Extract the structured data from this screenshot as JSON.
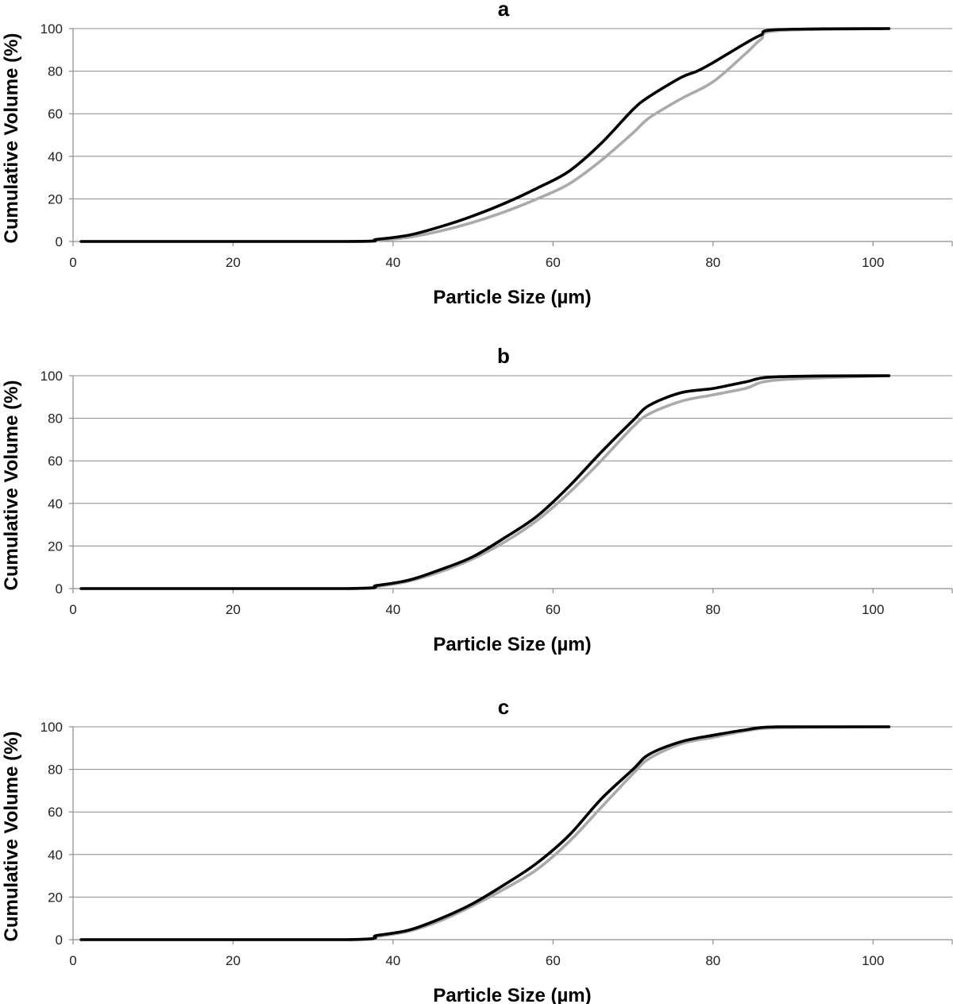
{
  "chart_data": [
    {
      "type": "line",
      "title": "a",
      "xlabel": "Particle Size (µm)",
      "ylabel": "Cumulative Volume (%)",
      "xlim": [
        0,
        110
      ],
      "ylim": [
        0,
        100
      ],
      "xticks": [
        0,
        20,
        40,
        60,
        80,
        100
      ],
      "yticks": [
        0,
        20,
        40,
        60,
        80,
        100
      ],
      "grid": "horizontal",
      "legend": "none",
      "series": [
        {
          "color": "#aaaaaa",
          "x": [
            1,
            34,
            38,
            42,
            46,
            50,
            54,
            58,
            62,
            66,
            70,
            72,
            76,
            80,
            84,
            86,
            88,
            102
          ],
          "y": [
            0,
            0,
            0.5,
            2,
            5,
            9,
            14,
            20,
            27,
            38,
            51,
            58,
            67,
            75,
            88,
            95,
            99,
            100
          ]
        },
        {
          "color": "#000000",
          "x": [
            1,
            34,
            38,
            42,
            46,
            50,
            54,
            58,
            62,
            66,
            70,
            72,
            76,
            78,
            80,
            84,
            86,
            88,
            102
          ],
          "y": [
            0,
            0,
            1,
            3,
            7,
            12,
            18,
            25,
            33,
            46,
            62,
            68,
            77,
            80,
            84,
            93,
            97,
            99.5,
            100
          ]
        }
      ]
    },
    {
      "type": "line",
      "title": "b",
      "xlabel": "Particle Size (µm)",
      "ylabel": "Cumulative Volume (%)",
      "xlim": [
        0,
        110
      ],
      "ylim": [
        0,
        100
      ],
      "xticks": [
        0,
        20,
        40,
        60,
        80,
        100
      ],
      "yticks": [
        0,
        20,
        40,
        60,
        80,
        100
      ],
      "grid": "horizontal",
      "legend": "none",
      "series": [
        {
          "color": "#aaaaaa",
          "x": [
            1,
            34,
            38,
            42,
            46,
            50,
            54,
            58,
            62,
            66,
            70,
            72,
            76,
            80,
            84,
            88,
            102
          ],
          "y": [
            0,
            0,
            1,
            3.5,
            8,
            14,
            22,
            32,
            45,
            60,
            76,
            82,
            88,
            91,
            94,
            98,
            100
          ]
        },
        {
          "color": "#000000",
          "x": [
            1,
            34,
            38,
            42,
            46,
            50,
            54,
            58,
            62,
            66,
            70,
            72,
            76,
            80,
            84,
            88,
            102
          ],
          "y": [
            0,
            0,
            1.5,
            4,
            9,
            15,
            24,
            34,
            48,
            64,
            79,
            86,
            92,
            94,
            97,
            99.5,
            100
          ]
        }
      ]
    },
    {
      "type": "line",
      "title": "c",
      "xlabel": "Particle Size (µm)",
      "ylabel": "Cumulative Volume (%)",
      "xlim": [
        0,
        110
      ],
      "ylim": [
        0,
        100
      ],
      "xticks": [
        0,
        20,
        40,
        60,
        80,
        100
      ],
      "yticks": [
        0,
        20,
        40,
        60,
        80,
        100
      ],
      "grid": "horizontal",
      "legend": "none",
      "series": [
        {
          "color": "#aaaaaa",
          "x": [
            1,
            34,
            38,
            42,
            46,
            50,
            54,
            58,
            62,
            66,
            70,
            72,
            76,
            80,
            84,
            88,
            102
          ],
          "y": [
            0,
            0,
            1.5,
            4,
            9,
            16,
            24,
            33,
            46,
            62,
            78,
            85,
            92,
            95,
            98,
            99.5,
            100
          ]
        },
        {
          "color": "#000000",
          "x": [
            1,
            34,
            38,
            42,
            46,
            50,
            54,
            58,
            62,
            66,
            70,
            72,
            76,
            80,
            84,
            88,
            102
          ],
          "y": [
            0,
            0,
            2,
            4.5,
            10,
            17,
            26,
            36,
            49,
            66,
            80,
            87,
            93,
            96,
            98.5,
            100,
            100
          ]
        }
      ]
    }
  ]
}
